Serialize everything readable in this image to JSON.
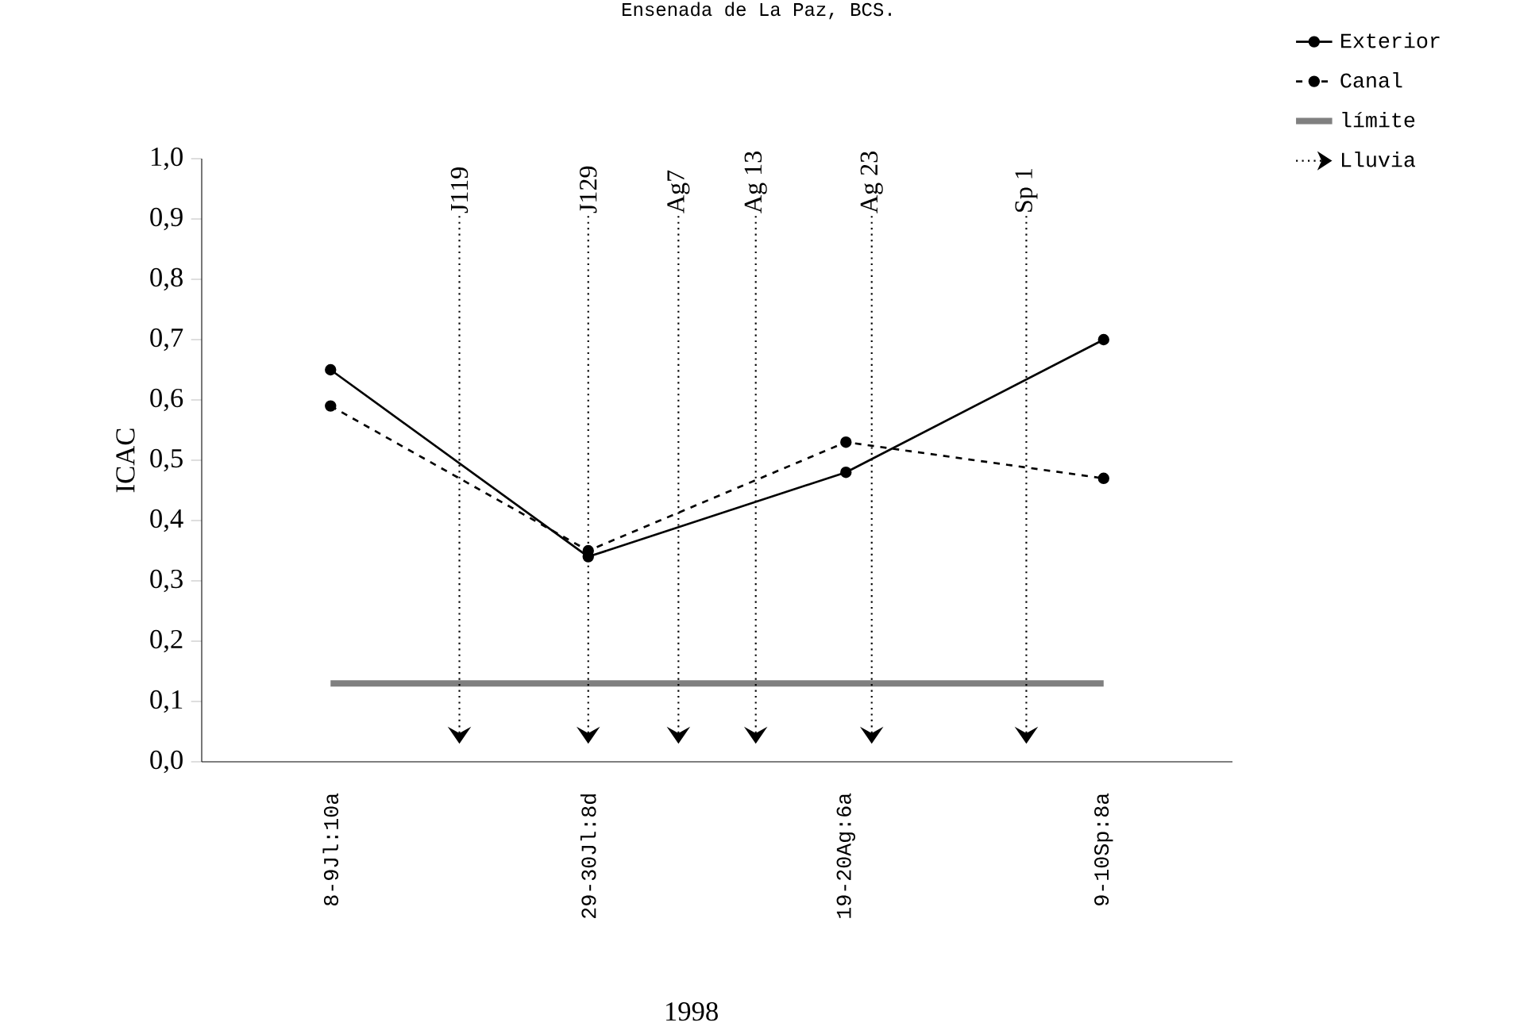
{
  "chart_data": {
    "type": "line",
    "title": "Ensenada de La Paz, BCS.",
    "xlabel": "1998",
    "ylabel": "ICAC",
    "categories": [
      "8-9Jl:10a",
      "29-30Jl:8d",
      "19-20Ag:6a",
      "9-10Sp:8a"
    ],
    "series": [
      {
        "name": "Exterior",
        "color": "#000000",
        "marker": "circle",
        "line_style": "solid",
        "values": [
          0.65,
          0.34,
          0.48,
          0.7
        ]
      },
      {
        "name": "Canal",
        "color": "#000000",
        "marker": "circle",
        "line_style": "dashed",
        "values": [
          0.59,
          0.35,
          0.53,
          0.47
        ]
      },
      {
        "name": "límite",
        "color": "#808080",
        "marker": "none",
        "line_style": "solid",
        "values": [
          0.13,
          0.13,
          0.13,
          0.13
        ]
      }
    ],
    "ylim": [
      0,
      1
    ],
    "yticks": [
      {
        "value": 0,
        "label": "0,0"
      },
      {
        "value": 0.1,
        "label": "0,1"
      },
      {
        "value": 0.2,
        "label": "0,2"
      },
      {
        "value": 0.3,
        "label": "0,3"
      },
      {
        "value": 0.4,
        "label": "0,4"
      },
      {
        "value": 0.5,
        "label": "0,5"
      },
      {
        "value": 0.6,
        "label": "0,6"
      },
      {
        "value": 0.7,
        "label": "0,7"
      },
      {
        "value": 0.8,
        "label": "0,8"
      },
      {
        "value": 0.9,
        "label": "0,9"
      },
      {
        "value": 1,
        "label": "1,0"
      }
    ],
    "annotations": [
      "J119",
      "J129",
      "Ag7",
      "Ag 13",
      "Ag 23",
      "Sp 1",
      "Lluvia"
    ],
    "legend": "top right",
    "grid": false
  }
}
